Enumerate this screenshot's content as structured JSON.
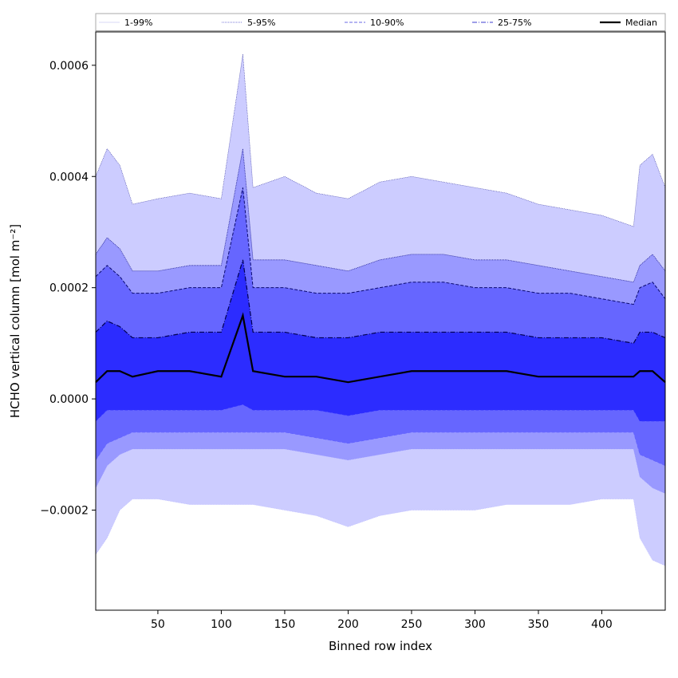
{
  "chart_data": {
    "type": "area",
    "xlabel": "Binned row index",
    "ylabel": "HCHO vertical column [mol m⁻²]",
    "xlim": [
      1,
      450
    ],
    "ylim": [
      -0.00038,
      0.00066
    ],
    "xticks": [
      50,
      100,
      150,
      200,
      250,
      300,
      350,
      400
    ],
    "yticks": [
      -0.0002,
      0.0,
      0.0002,
      0.0004,
      0.0006
    ],
    "ytick_labels": [
      "−0.0002",
      "0.0000",
      "0.0002",
      "0.0004",
      "0.0006"
    ],
    "grid": false,
    "legend_position": "top",
    "legend": [
      {
        "label": "1-99%",
        "color": "#d8d8f4",
        "style": "solid"
      },
      {
        "label": "5-95%",
        "color": "#7a7ad8",
        "style": "dotted"
      },
      {
        "label": "10-90%",
        "color": "#6a6ae4",
        "style": "dashed"
      },
      {
        "label": "25-75%",
        "color": "#3c3cd2",
        "style": "dashdot"
      },
      {
        "label": "Median",
        "color": "#000000",
        "style": "solid"
      }
    ],
    "band_colors": {
      "1-99%": "#ccccff",
      "5-95%": "#9999ff",
      "10-90%": "#6666ff",
      "25-75%": "#2c2cff"
    },
    "x": [
      1,
      10,
      20,
      30,
      50,
      75,
      100,
      117,
      125,
      150,
      175,
      200,
      225,
      250,
      275,
      300,
      325,
      350,
      375,
      400,
      425,
      430,
      440,
      450
    ],
    "series": [
      {
        "name": "99%",
        "values": [
          0.0004,
          0.00045,
          0.00042,
          0.00035,
          0.00036,
          0.00037,
          0.00036,
          0.00062,
          0.00038,
          0.0004,
          0.00037,
          0.00036,
          0.00039,
          0.0004,
          0.00039,
          0.00038,
          0.00037,
          0.00035,
          0.00034,
          0.00033,
          0.00031,
          0.00042,
          0.00044,
          0.00038
        ]
      },
      {
        "name": "95%",
        "values": [
          0.00026,
          0.00029,
          0.00027,
          0.00023,
          0.00023,
          0.00024,
          0.00024,
          0.00045,
          0.00025,
          0.00025,
          0.00024,
          0.00023,
          0.00025,
          0.00026,
          0.00026,
          0.00025,
          0.00025,
          0.00024,
          0.00023,
          0.00022,
          0.00021,
          0.00024,
          0.00026,
          0.00023
        ]
      },
      {
        "name": "90%",
        "values": [
          0.00022,
          0.00024,
          0.00022,
          0.00019,
          0.00019,
          0.0002,
          0.0002,
          0.00038,
          0.0002,
          0.0002,
          0.00019,
          0.00019,
          0.0002,
          0.00021,
          0.00021,
          0.0002,
          0.0002,
          0.00019,
          0.00019,
          0.00018,
          0.00017,
          0.0002,
          0.00021,
          0.00018
        ]
      },
      {
        "name": "75%",
        "values": [
          0.00012,
          0.00014,
          0.00013,
          0.00011,
          0.00011,
          0.00012,
          0.00012,
          0.00025,
          0.00012,
          0.00012,
          0.00011,
          0.00011,
          0.00012,
          0.00012,
          0.00012,
          0.00012,
          0.00012,
          0.00011,
          0.00011,
          0.00011,
          0.0001,
          0.00012,
          0.00012,
          0.00011
        ]
      },
      {
        "name": "Median",
        "values": [
          3e-05,
          5e-05,
          5e-05,
          4e-05,
          5e-05,
          5e-05,
          4e-05,
          0.00015,
          5e-05,
          4e-05,
          4e-05,
          3e-05,
          4e-05,
          5e-05,
          5e-05,
          5e-05,
          5e-05,
          4e-05,
          4e-05,
          4e-05,
          4e-05,
          5e-05,
          5e-05,
          3e-05
        ]
      },
      {
        "name": "25%",
        "values": [
          -4e-05,
          -2e-05,
          -2e-05,
          -2e-05,
          -2e-05,
          -2e-05,
          -2e-05,
          -1e-05,
          -2e-05,
          -2e-05,
          -2e-05,
          -3e-05,
          -2e-05,
          -2e-05,
          -2e-05,
          -2e-05,
          -2e-05,
          -2e-05,
          -2e-05,
          -2e-05,
          -2e-05,
          -4e-05,
          -4e-05,
          -4e-05
        ]
      },
      {
        "name": "10%",
        "values": [
          -0.00011,
          -8e-05,
          -7e-05,
          -6e-05,
          -6e-05,
          -6e-05,
          -6e-05,
          -6e-05,
          -6e-05,
          -6e-05,
          -7e-05,
          -8e-05,
          -7e-05,
          -6e-05,
          -6e-05,
          -6e-05,
          -6e-05,
          -6e-05,
          -6e-05,
          -6e-05,
          -6e-05,
          -0.0001,
          -0.00011,
          -0.00012
        ]
      },
      {
        "name": "5%",
        "values": [
          -0.00016,
          -0.00012,
          -0.0001,
          -9e-05,
          -9e-05,
          -9e-05,
          -9e-05,
          -9e-05,
          -9e-05,
          -9e-05,
          -0.0001,
          -0.00011,
          -0.0001,
          -9e-05,
          -9e-05,
          -9e-05,
          -9e-05,
          -9e-05,
          -9e-05,
          -9e-05,
          -9e-05,
          -0.00014,
          -0.00016,
          -0.00017
        ]
      },
      {
        "name": "1%",
        "values": [
          -0.00028,
          -0.00025,
          -0.0002,
          -0.00018,
          -0.00018,
          -0.00019,
          -0.00019,
          -0.00019,
          -0.00019,
          -0.0002,
          -0.00021,
          -0.00023,
          -0.00021,
          -0.0002,
          -0.0002,
          -0.0002,
          -0.00019,
          -0.00019,
          -0.00019,
          -0.00018,
          -0.00018,
          -0.00025,
          -0.00029,
          -0.0003
        ]
      }
    ]
  }
}
